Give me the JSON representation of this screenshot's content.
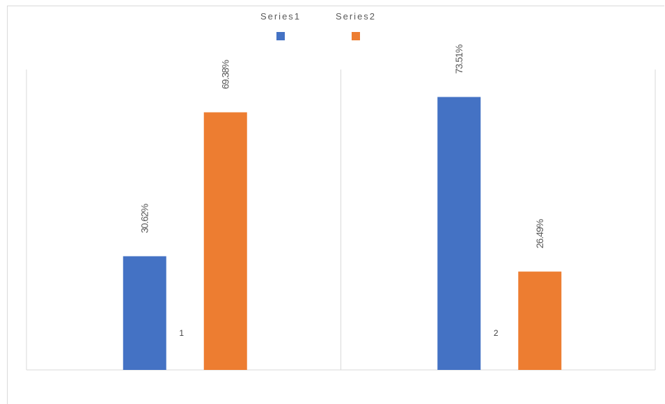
{
  "chart_data": {
    "type": "bar",
    "categories": [
      "1",
      "2"
    ],
    "series": [
      {
        "name": "Series1",
        "values": [
          30.62,
          73.51
        ],
        "labels": [
          "30.62%",
          "73.51%"
        ],
        "color": "#4472c4"
      },
      {
        "name": "Series2",
        "values": [
          69.38,
          26.49
        ],
        "labels": [
          "69.38%",
          "26.49%"
        ],
        "color": "#ed7d31"
      }
    ],
    "title": "",
    "xlabel": "",
    "ylabel": "",
    "ylim": [
      0,
      90
    ],
    "legend_position": "top",
    "grid": false,
    "gridline_color": "#d9d9d9"
  }
}
